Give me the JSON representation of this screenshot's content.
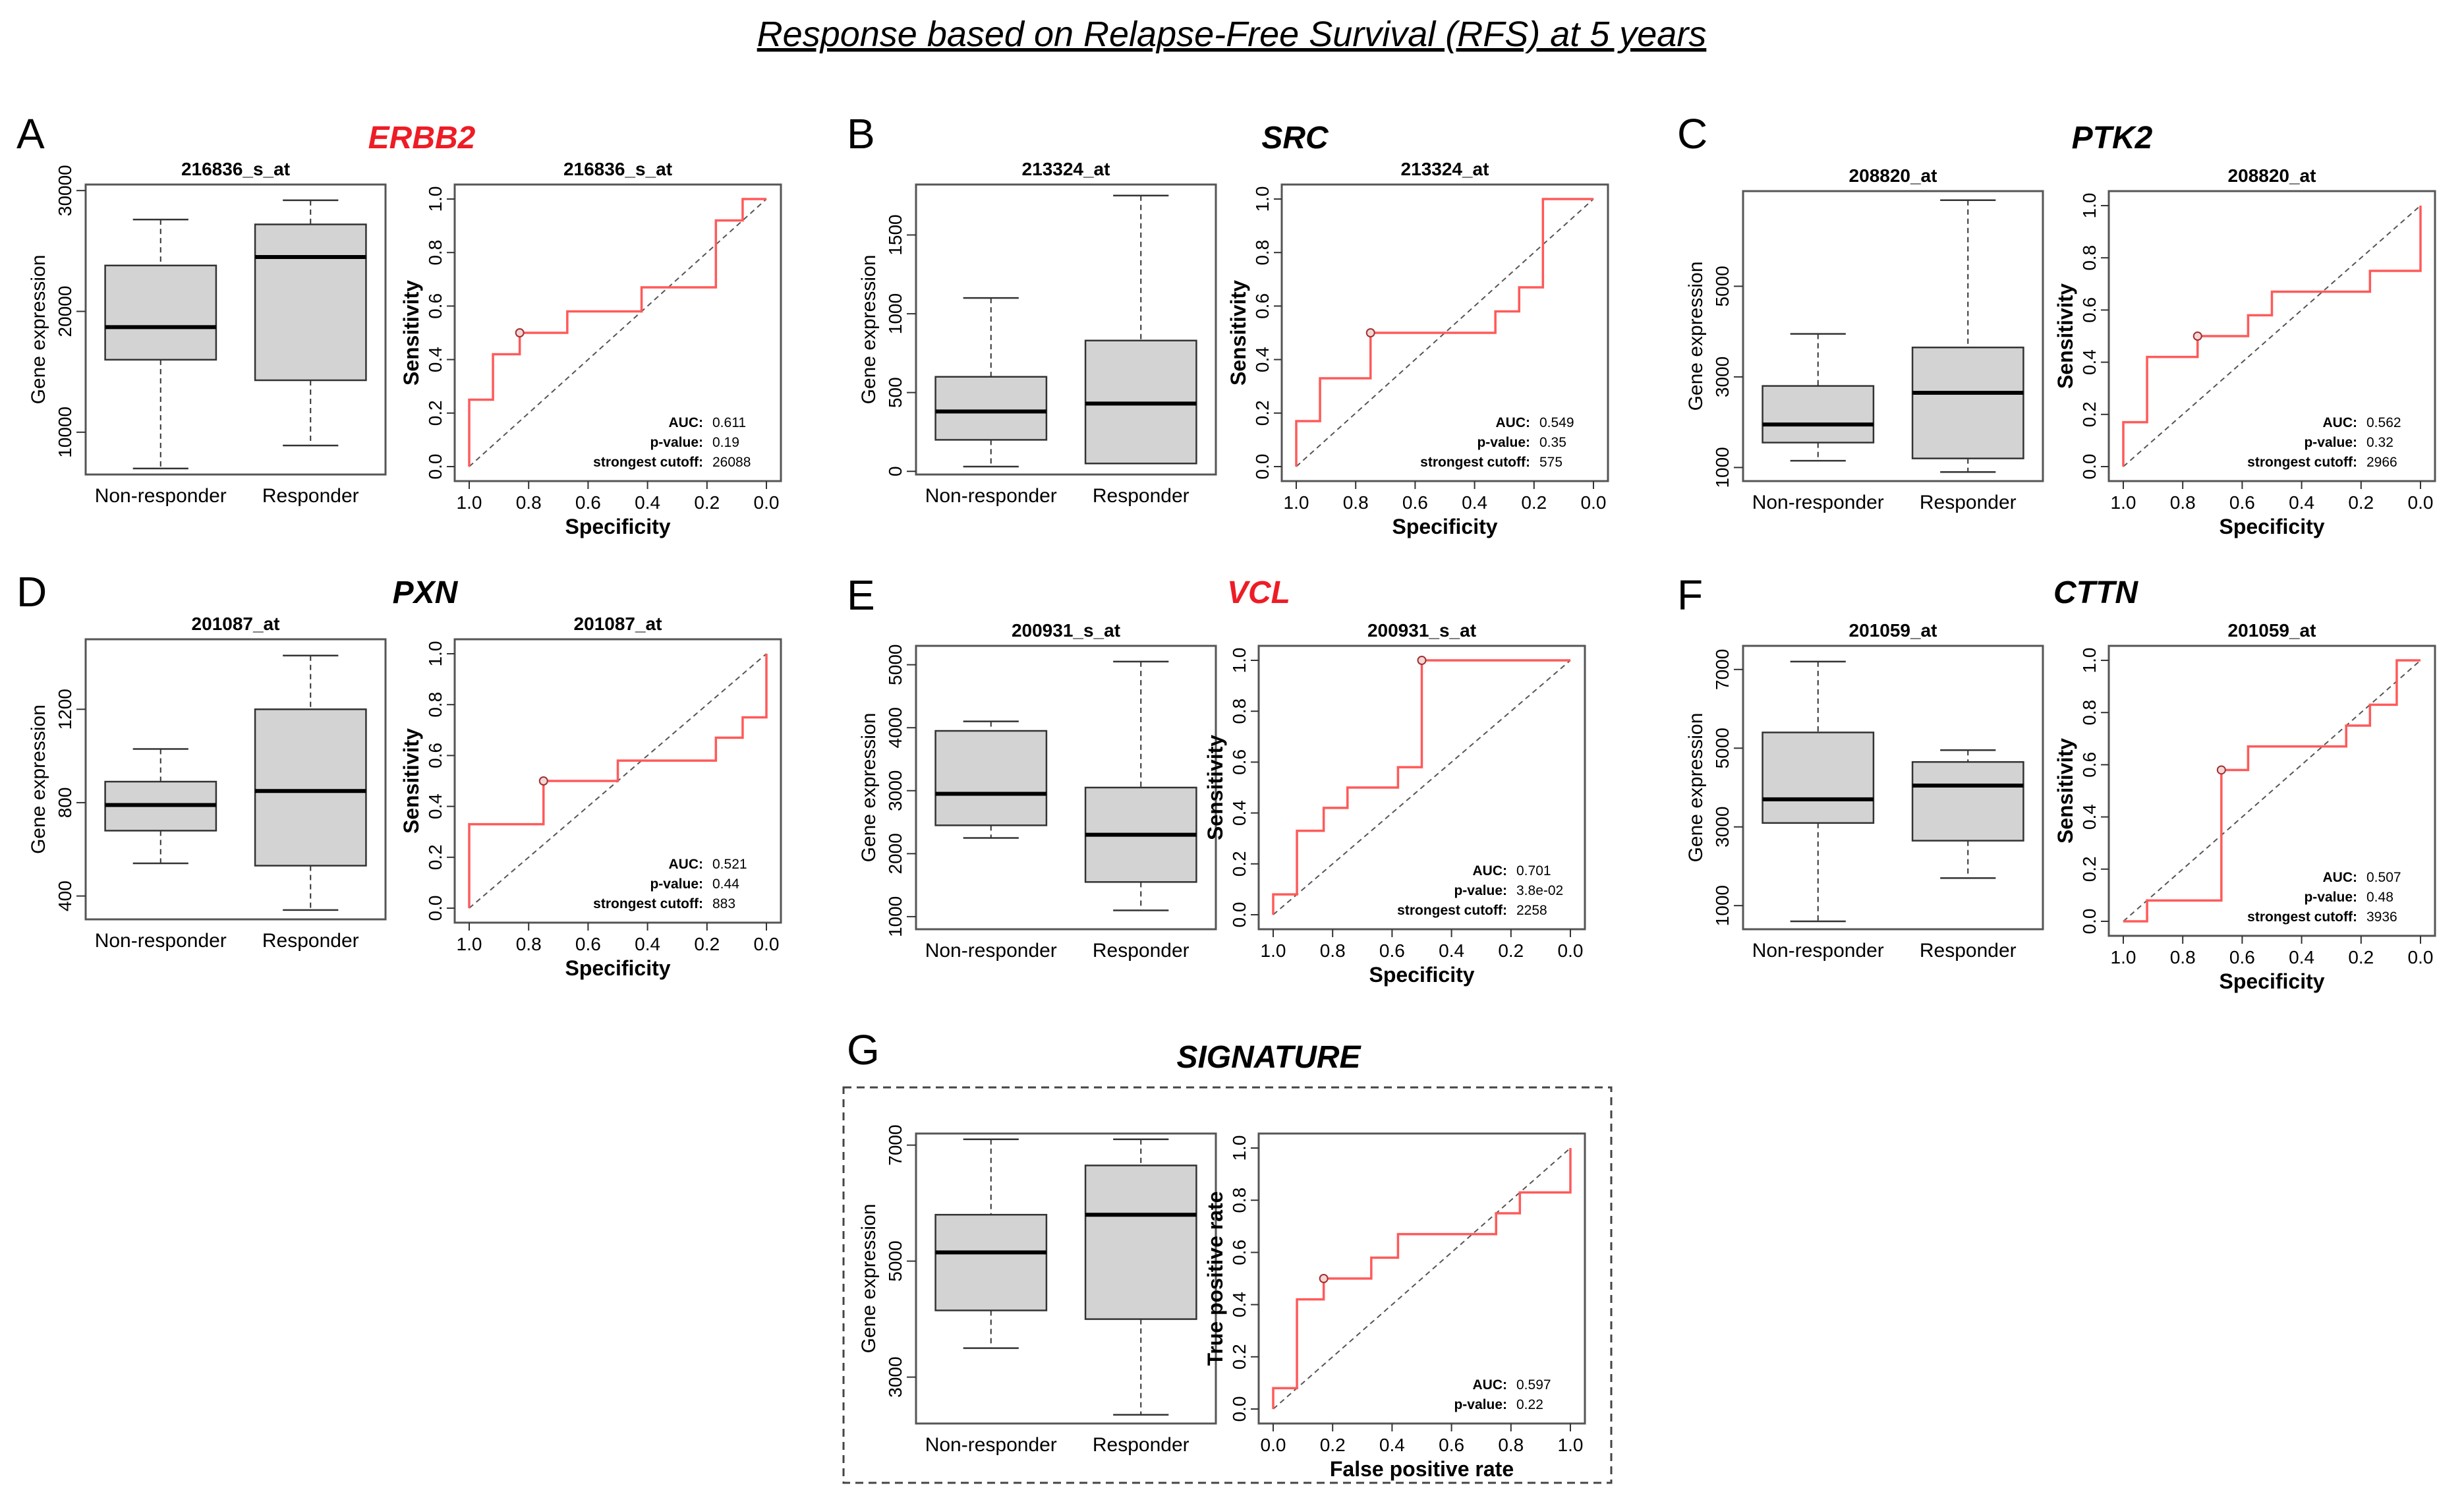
{
  "title": "Response based on Relapse-Free Survival (RFS) at 5 years",
  "colors": {
    "highlight": "#ee1c25",
    "normal": "#000000",
    "roc": "#ff5a5a",
    "box_fill": "#d3d3d3"
  },
  "chart_data": [
    {
      "panel": "A",
      "gene": "ERBB2",
      "gene_highlight": true,
      "box": {
        "type": "box",
        "title": "216836_s_at",
        "ylabel": "Gene expression",
        "ylim": [
          6500,
          30500
        ],
        "yticks": [
          10000,
          20000,
          30000
        ],
        "categories": [
          "Non-responder",
          "Responder"
        ],
        "stats": [
          {
            "min": 7000,
            "q1": 16000,
            "median": 18700,
            "q3": 23800,
            "max": 27600
          },
          {
            "min": 8900,
            "q1": 14300,
            "median": 24500,
            "q3": 27200,
            "max": 29200
          }
        ]
      },
      "roc": {
        "type": "line",
        "title": "216836_s_at",
        "xlabel": "Specificity",
        "ylabel": "Sensitivity",
        "xlim": [
          1.0,
          0.0
        ],
        "xticks": [
          "1.0",
          "0.8",
          "0.6",
          "0.4",
          "0.2",
          "0.0"
        ],
        "ylim": [
          0,
          1
        ],
        "yticks": [
          "0.0",
          "0.2",
          "0.4",
          "0.6",
          "0.8",
          "1.0"
        ],
        "x": [
          1.0,
          1.0,
          0.92,
          0.92,
          0.83,
          0.83,
          0.67,
          0.67,
          0.42,
          0.42,
          0.17,
          0.17,
          0.08,
          0.08,
          0.0
        ],
        "y": [
          0.0,
          0.25,
          0.25,
          0.42,
          0.42,
          0.5,
          0.5,
          0.58,
          0.58,
          0.67,
          0.67,
          0.92,
          0.92,
          1.0,
          1.0
        ],
        "cutoff_point": [
          0.83,
          0.5
        ],
        "stats": [
          {
            "label": "AUC:",
            "value": "0.611"
          },
          {
            "label": "p-value:",
            "value": "0.19"
          },
          {
            "label": "strongest cutoff:",
            "value": "26088"
          }
        ]
      }
    },
    {
      "panel": "B",
      "gene": "SRC",
      "gene_highlight": false,
      "box": {
        "type": "box",
        "title": "213324_at",
        "ylabel": "Gene expression",
        "ylim": [
          -20,
          1820
        ],
        "yticks": [
          0,
          500,
          1000,
          1500
        ],
        "categories": [
          "Non-responder",
          "Responder"
        ],
        "stats": [
          {
            "min": 30,
            "q1": 200,
            "median": 380,
            "q3": 600,
            "max": 1100
          },
          {
            "min": 50,
            "q1": 50,
            "median": 430,
            "q3": 830,
            "max": 1750
          }
        ]
      },
      "roc": {
        "type": "line",
        "title": "213324_at",
        "xlabel": "Specificity",
        "ylabel": "Sensitivity",
        "xlim": [
          1.0,
          0.0
        ],
        "xticks": [
          "1.0",
          "0.8",
          "0.6",
          "0.4",
          "0.2",
          "0.0"
        ],
        "ylim": [
          0,
          1
        ],
        "yticks": [
          "0.0",
          "0.2",
          "0.4",
          "0.6",
          "0.8",
          "1.0"
        ],
        "x": [
          1.0,
          1.0,
          0.92,
          0.92,
          0.75,
          0.75,
          0.33,
          0.33,
          0.25,
          0.25,
          0.17,
          0.17,
          0.0
        ],
        "y": [
          0.0,
          0.17,
          0.17,
          0.33,
          0.33,
          0.5,
          0.5,
          0.58,
          0.58,
          0.67,
          0.67,
          1.0,
          1.0
        ],
        "cutoff_point": [
          0.75,
          0.5
        ],
        "stats": [
          {
            "label": "AUC:",
            "value": "0.549"
          },
          {
            "label": "p-value:",
            "value": "0.35"
          },
          {
            "label": "strongest cutoff:",
            "value": "575"
          }
        ]
      }
    },
    {
      "panel": "C",
      "gene": "PTK2",
      "gene_highlight": false,
      "box": {
        "type": "box",
        "title": "208820_at",
        "ylabel": "Gene expression",
        "ylim": [
          700,
          7100
        ],
        "yticks": [
          1000,
          3000,
          5000
        ],
        "categories": [
          "Non-responder",
          "Responder"
        ],
        "stats": [
          {
            "min": 1150,
            "q1": 1550,
            "median": 1950,
            "q3": 2800,
            "max": 3950
          },
          {
            "min": 900,
            "q1": 1200,
            "median": 2650,
            "q3": 3650,
            "max": 6900
          }
        ]
      },
      "roc": {
        "type": "line",
        "title": "208820_at",
        "xlabel": "Specificity",
        "ylabel": "Sensitivity",
        "xlim": [
          1.0,
          0.0
        ],
        "xticks": [
          "1.0",
          "0.8",
          "0.6",
          "0.4",
          "0.2",
          "0.0"
        ],
        "ylim": [
          0,
          1
        ],
        "yticks": [
          "0.0",
          "0.2",
          "0.4",
          "0.6",
          "0.8",
          "1.0"
        ],
        "x": [
          1.0,
          1.0,
          0.92,
          0.92,
          0.75,
          0.75,
          0.58,
          0.58,
          0.5,
          0.5,
          0.17,
          0.17,
          0.0,
          0.0
        ],
        "y": [
          0.0,
          0.17,
          0.17,
          0.42,
          0.42,
          0.5,
          0.5,
          0.58,
          0.58,
          0.67,
          0.67,
          0.75,
          0.75,
          1.0
        ],
        "cutoff_point": [
          0.75,
          0.5
        ],
        "stats": [
          {
            "label": "AUC:",
            "value": "0.562"
          },
          {
            "label": "p-value:",
            "value": "0.32"
          },
          {
            "label": "strongest cutoff:",
            "value": "2966"
          }
        ]
      }
    },
    {
      "panel": "D",
      "gene": "PXN",
      "gene_highlight": false,
      "box": {
        "type": "box",
        "title": "201087_at",
        "ylabel": "Gene expression",
        "ylim": [
          300,
          1500
        ],
        "yticks": [
          400,
          800,
          1200
        ],
        "categories": [
          "Non-responder",
          "Responder"
        ],
        "stats": [
          {
            "min": 540,
            "q1": 680,
            "median": 790,
            "q3": 890,
            "max": 1030
          },
          {
            "min": 340,
            "q1": 530,
            "median": 850,
            "q3": 1200,
            "max": 1430
          }
        ]
      },
      "roc": {
        "type": "line",
        "title": "201087_at",
        "xlabel": "Specificity",
        "ylabel": "Sensitivity",
        "xlim": [
          1.0,
          0.0
        ],
        "xticks": [
          "1.0",
          "0.8",
          "0.6",
          "0.4",
          "0.2",
          "0.0"
        ],
        "ylim": [
          0,
          1
        ],
        "yticks": [
          "0.0",
          "0.2",
          "0.4",
          "0.6",
          "0.8",
          "1.0"
        ],
        "x": [
          1.0,
          1.0,
          0.75,
          0.75,
          0.5,
          0.5,
          0.17,
          0.17,
          0.08,
          0.08,
          0.0,
          0.0
        ],
        "y": [
          0.0,
          0.33,
          0.33,
          0.5,
          0.5,
          0.58,
          0.58,
          0.67,
          0.67,
          0.75,
          0.75,
          1.0
        ],
        "cutoff_point": [
          0.75,
          0.5
        ],
        "stats": [
          {
            "label": "AUC:",
            "value": "0.521"
          },
          {
            "label": "p-value:",
            "value": "0.44"
          },
          {
            "label": "strongest cutoff:",
            "value": "883"
          }
        ]
      }
    },
    {
      "panel": "E",
      "gene": "VCL",
      "gene_highlight": true,
      "box": {
        "type": "box",
        "title": "200931_s_at",
        "ylabel": "Gene expression",
        "ylim": [
          800,
          5300
        ],
        "yticks": [
          1000,
          2000,
          3000,
          4000,
          5000
        ],
        "categories": [
          "Non-responder",
          "Responder"
        ],
        "stats": [
          {
            "min": 2250,
            "q1": 2450,
            "median": 2950,
            "q3": 3950,
            "max": 4100
          },
          {
            "min": 1100,
            "q1": 1550,
            "median": 2300,
            "q3": 3050,
            "max": 5050
          }
        ]
      },
      "roc": {
        "type": "line",
        "title": "200931_s_at",
        "xlabel": "Specificity",
        "ylabel": "Sensitivity",
        "xlim": [
          1.0,
          0.0
        ],
        "xticks": [
          "1.0",
          "0.8",
          "0.6",
          "0.4",
          "0.2",
          "0.0"
        ],
        "ylim": [
          0,
          1
        ],
        "yticks": [
          "0.0",
          "0.2",
          "0.4",
          "0.6",
          "0.8",
          "1.0"
        ],
        "x": [
          1.0,
          1.0,
          0.92,
          0.92,
          0.83,
          0.83,
          0.75,
          0.75,
          0.58,
          0.58,
          0.5,
          0.5,
          0.0
        ],
        "y": [
          0.0,
          0.08,
          0.08,
          0.33,
          0.33,
          0.42,
          0.42,
          0.5,
          0.5,
          0.58,
          0.58,
          1.0,
          1.0
        ],
        "cutoff_point": [
          0.5,
          1.0
        ],
        "stats": [
          {
            "label": "AUC:",
            "value": "0.701"
          },
          {
            "label": "p-value:",
            "value": "3.8e-02"
          },
          {
            "label": "strongest cutoff:",
            "value": "2258"
          }
        ]
      }
    },
    {
      "panel": "F",
      "gene": "CTTN",
      "gene_highlight": false,
      "box": {
        "type": "box",
        "title": "201059_at",
        "ylabel": "Gene expression",
        "ylim": [
          400,
          7600
        ],
        "yticks": [
          1000,
          3000,
          5000,
          7000
        ],
        "categories": [
          "Non-responder",
          "Responder"
        ],
        "stats": [
          {
            "min": 600,
            "q1": 3100,
            "median": 3700,
            "q3": 5400,
            "max": 7200
          },
          {
            "min": 1700,
            "q1": 2650,
            "median": 4050,
            "q3": 4650,
            "max": 4950
          }
        ]
      },
      "roc": {
        "type": "line",
        "title": "201059_at",
        "xlabel": "Specificity",
        "ylabel": "Sensitivity",
        "xlim": [
          1.0,
          0.0
        ],
        "xticks": [
          "1.0",
          "0.8",
          "0.6",
          "0.4",
          "0.2",
          "0.0"
        ],
        "ylim": [
          0,
          1
        ],
        "yticks": [
          "0.0",
          "0.2",
          "0.4",
          "0.6",
          "0.8",
          "1.0"
        ],
        "x": [
          1.0,
          0.92,
          0.92,
          0.67,
          0.67,
          0.58,
          0.58,
          0.25,
          0.25,
          0.17,
          0.17,
          0.08,
          0.08,
          0.0
        ],
        "y": [
          0.0,
          0.0,
          0.08,
          0.08,
          0.58,
          0.58,
          0.67,
          0.67,
          0.75,
          0.75,
          0.83,
          0.83,
          1.0,
          1.0
        ],
        "cutoff_point": [
          0.67,
          0.58
        ],
        "stats": [
          {
            "label": "AUC:",
            "value": "0.507"
          },
          {
            "label": "p-value:",
            "value": "0.48"
          },
          {
            "label": "strongest cutoff:",
            "value": "3936"
          }
        ]
      }
    },
    {
      "panel": "G",
      "gene": "SIGNATURE",
      "gene_highlight": false,
      "box": {
        "type": "box",
        "title": "",
        "ylabel": "Gene expression",
        "ylim": [
          2200,
          7200
        ],
        "yticks": [
          3000,
          5000,
          7000
        ],
        "categories": [
          "Non-responder",
          "Responder"
        ],
        "stats": [
          {
            "min": 3500,
            "q1": 4150,
            "median": 5150,
            "q3": 5800,
            "max": 7100
          },
          {
            "min": 2350,
            "q1": 4000,
            "median": 5800,
            "q3": 6650,
            "max": 7100
          }
        ]
      },
      "roc": {
        "type": "line",
        "title": "",
        "xlabel": "False positive rate",
        "ylabel": "True positive rate",
        "xlim": [
          0.0,
          1.0
        ],
        "xticks": [
          "0.0",
          "0.2",
          "0.4",
          "0.6",
          "0.8",
          "1.0"
        ],
        "ylim": [
          0,
          1
        ],
        "yticks": [
          "0.0",
          "0.2",
          "0.4",
          "0.6",
          "0.8",
          "1.0"
        ],
        "x": [
          0.0,
          0.0,
          0.08,
          0.08,
          0.17,
          0.17,
          0.33,
          0.33,
          0.42,
          0.42,
          0.75,
          0.75,
          0.83,
          0.83,
          1.0,
          1.0
        ],
        "y": [
          0.0,
          0.08,
          0.08,
          0.42,
          0.42,
          0.5,
          0.5,
          0.58,
          0.58,
          0.67,
          0.67,
          0.75,
          0.75,
          0.83,
          0.83,
          1.0
        ],
        "cutoff_point": [
          0.17,
          0.5
        ],
        "stats": [
          {
            "label": "AUC:",
            "value": "0.597"
          },
          {
            "label": "p-value:",
            "value": "0.22"
          }
        ]
      }
    }
  ]
}
